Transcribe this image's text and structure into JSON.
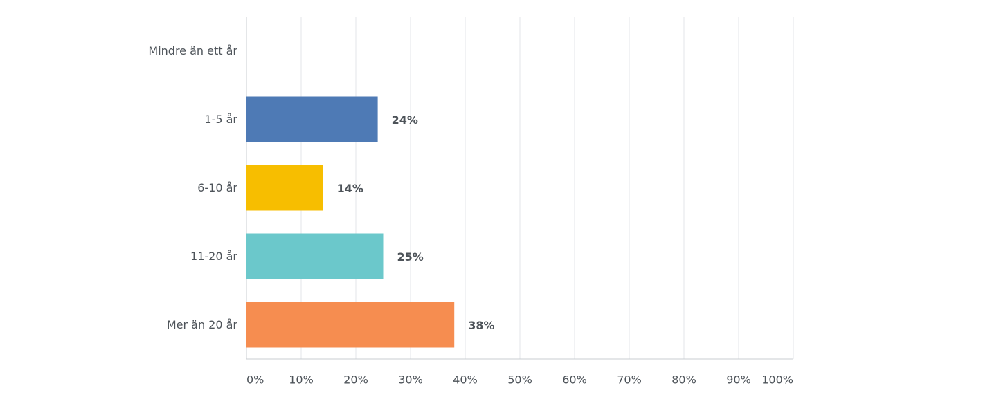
{
  "chart_data": {
    "type": "bar",
    "orientation": "horizontal",
    "categories": [
      "Mindre än ett år",
      "1-5 år",
      "6-10 år",
      "11-20 år",
      "Mer än 20 år"
    ],
    "values": [
      0,
      24,
      14,
      25,
      38
    ],
    "value_labels": [
      null,
      "24%",
      "14%",
      "25%",
      "38%"
    ],
    "colors": [
      "#4e7ab5",
      "#4e7ab5",
      "#f7be00",
      "#6bc8cb",
      "#f68d50"
    ],
    "xlim": [
      0,
      100
    ],
    "xticks": [
      {
        "value": 0,
        "label": "0%"
      },
      {
        "value": 10,
        "label": "10%"
      },
      {
        "value": 20,
        "label": "20%"
      },
      {
        "value": 30,
        "label": "30%"
      },
      {
        "value": 40,
        "label": "40%"
      },
      {
        "value": 50,
        "label": "50%"
      },
      {
        "value": 60,
        "label": "60%"
      },
      {
        "value": 70,
        "label": "70%"
      },
      {
        "value": 80,
        "label": "80%"
      },
      {
        "value": 90,
        "label": "90%"
      },
      {
        "value": 100,
        "label": "100%"
      }
    ],
    "grid": true
  }
}
